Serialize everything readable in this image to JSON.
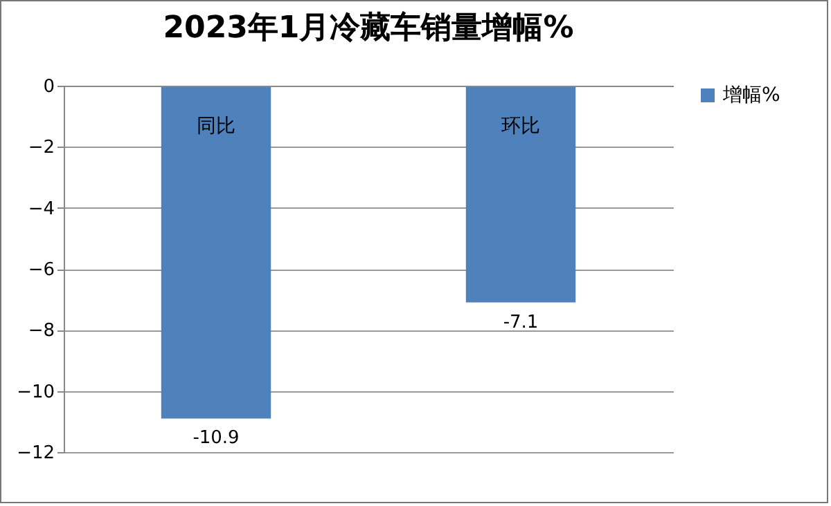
{
  "chart_data": {
    "type": "bar",
    "title": "2023年1月冷藏车销量增幅%",
    "categories": [
      "同比",
      "环比"
    ],
    "series": [
      {
        "name": "增幅%",
        "color": "#4f81bd",
        "values": [
          -10.9,
          -7.1
        ]
      }
    ],
    "ylim": [
      -12,
      0
    ],
    "yticks": [
      0,
      -2,
      -4,
      -6,
      -8,
      -10,
      -12
    ],
    "grid": "y",
    "legend": "right",
    "data_labels": true
  }
}
